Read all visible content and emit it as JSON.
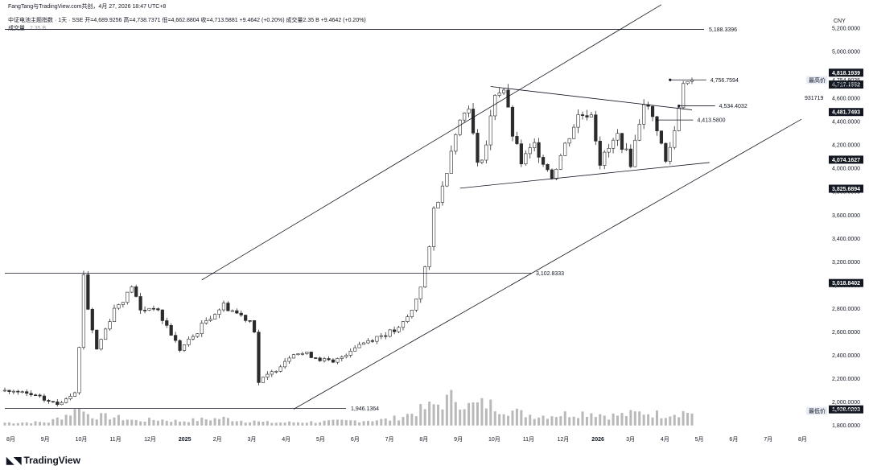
{
  "header": {
    "attribution": "FangTang与TradingView.com共创，4月 27, 2026 18:47 UTC+8",
    "symbol_line": "中证电池主题指数 · 1天 · SSE  开=4,689.9256  高=4,738.7371  低=4,662.8804  收=4,713.5881  +9.4642 (+0.20%)  成交量2.35 B  +9.4642 (+0.20%)",
    "volume_label": "成交量",
    "volume_value": "2.35 B"
  },
  "branding": {
    "logo_text": "TradingView"
  },
  "chart_data": {
    "type": "candlestick",
    "currency": "CNY",
    "y_ticks": [
      1800,
      2000,
      2200,
      2400,
      2600,
      2800,
      3000,
      3200,
      3400,
      3600,
      3800,
      4000,
      4200,
      4400,
      4600,
      5000,
      5200
    ],
    "y_tick_labels": [
      "1,800.0000",
      "2,000.0000",
      "2,200.0000",
      "2,400.0000",
      "2,600.0000",
      "2,800.0000",
      "3,000.0000",
      "3,200.0000",
      "3,400.0000",
      "3,600.0000",
      "3,800.0000",
      "4,000.0000",
      "4,200.0000",
      "4,400.0000",
      "4,600.0000",
      "5,000.0000",
      "5,200.0000"
    ],
    "x_labels": [
      "8月",
      "9月",
      "10月",
      "11月",
      "12月",
      "2025",
      "2月",
      "3月",
      "4月",
      "5月",
      "6月",
      "7月",
      "8月",
      "9月",
      "10月",
      "11月",
      "12月",
      "2026",
      "3月",
      "4月",
      "5月",
      "6月",
      "7月",
      "8月"
    ],
    "x_label_bold": [
      "2025",
      "2026"
    ],
    "ylim": [
      1750,
      5330
    ],
    "price_path": [
      [
        0,
        2100
      ],
      [
        6,
        2060
      ],
      [
        12,
        1980
      ],
      [
        16,
        2100
      ],
      [
        17,
        2460
      ],
      [
        18,
        3102
      ],
      [
        19,
        2800
      ],
      [
        21,
        2450
      ],
      [
        25,
        2800
      ],
      [
        28,
        2920
      ],
      [
        29,
        3000
      ],
      [
        31,
        2780
      ],
      [
        34,
        2820
      ],
      [
        37,
        2650
      ],
      [
        40,
        2450
      ],
      [
        43,
        2560
      ],
      [
        46,
        2700
      ],
      [
        50,
        2830
      ],
      [
        53,
        2760
      ],
      [
        56,
        2700
      ],
      [
        57,
        2620
      ],
      [
        58,
        2170
      ],
      [
        61,
        2250
      ],
      [
        66,
        2430
      ],
      [
        70,
        2400
      ],
      [
        75,
        2330
      ],
      [
        80,
        2480
      ],
      [
        85,
        2560
      ],
      [
        90,
        2620
      ],
      [
        93,
        2780
      ],
      [
        95,
        3000
      ],
      [
        97,
        3300
      ],
      [
        98,
        3650
      ],
      [
        100,
        3830
      ],
      [
        103,
        4330
      ],
      [
        106,
        4550
      ],
      [
        108,
        4020
      ],
      [
        110,
        4200
      ],
      [
        112,
        4650
      ],
      [
        114,
        4680
      ],
      [
        116,
        4290
      ],
      [
        118,
        4050
      ],
      [
        121,
        4200
      ],
      [
        125,
        3930
      ],
      [
        128,
        4200
      ],
      [
        131,
        4450
      ],
      [
        134,
        4480
      ],
      [
        136,
        4050
      ],
      [
        140,
        4280
      ],
      [
        143,
        4050
      ],
      [
        146,
        4580
      ],
      [
        149,
        4350
      ],
      [
        151,
        4050
      ],
      [
        153,
        4320
      ],
      [
        155,
        4756
      ],
      [
        157,
        4714
      ]
    ],
    "volume_scale": [
      1800,
      4500
    ],
    "volume_profile": [
      [
        0,
        12
      ],
      [
        10,
        14
      ],
      [
        16,
        60
      ],
      [
        17,
        95
      ],
      [
        18,
        55
      ],
      [
        20,
        40
      ],
      [
        25,
        35
      ],
      [
        30,
        20
      ],
      [
        35,
        25
      ],
      [
        40,
        18
      ],
      [
        45,
        25
      ],
      [
        50,
        30
      ],
      [
        55,
        18
      ],
      [
        57,
        22
      ],
      [
        58,
        15
      ],
      [
        62,
        12
      ],
      [
        70,
        15
      ],
      [
        80,
        20
      ],
      [
        88,
        25
      ],
      [
        92,
        45
      ],
      [
        96,
        70
      ],
      [
        100,
        95
      ],
      [
        103,
        120
      ],
      [
        106,
        80
      ],
      [
        110,
        90
      ],
      [
        114,
        70
      ],
      [
        118,
        50
      ],
      [
        122,
        40
      ],
      [
        126,
        45
      ],
      [
        130,
        50
      ],
      [
        134,
        55
      ],
      [
        138,
        40
      ],
      [
        142,
        45
      ],
      [
        146,
        55
      ],
      [
        150,
        45
      ],
      [
        154,
        55
      ],
      [
        157,
        55
      ]
    ],
    "horizontal_levels": [
      {
        "value": 5188.3396,
        "label": "5,188.3396"
      },
      {
        "value": 3102.8333,
        "label": "3,102.8333"
      },
      {
        "value": 1946.1364,
        "label": "1,946.1364"
      }
    ],
    "trendlines": [
      {
        "from": [
          45,
          3045
        ],
        "to": [
          150,
          5400
        ]
      },
      {
        "from": [
          66,
          1940
        ],
        "to": [
          182,
          4420
        ]
      },
      {
        "from": [
          111,
          4700
        ],
        "to": [
          157,
          4500
        ]
      },
      {
        "from": [
          104,
          3830
        ],
        "to": [
          161,
          4050
        ]
      }
    ],
    "arrow_annotations": [
      {
        "label": "4,756.7594",
        "x": 152,
        "y": 4756.7594
      },
      {
        "label": "4,534.4032",
        "x": 154,
        "y": 4534.4032
      },
      {
        "label": "4,413.5800",
        "x": 149,
        "y": 4413.58
      }
    ],
    "price_tags": [
      {
        "label": "4,818.1939",
        "value": 4818.1939,
        "style": "dark"
      },
      {
        "label": "最高价",
        "value": 4754.9035,
        "style": "tag"
      },
      {
        "label": "4,754.9035",
        "value": 4754.9035,
        "style": "plain"
      },
      {
        "label": "4,717.1552",
        "value": 4717.1552,
        "style": "dark"
      },
      {
        "label": "4,713.5881",
        "value": 4713.5881,
        "style": "plain"
      },
      {
        "label": "4,481.7493",
        "value": 4481.7493,
        "style": "dark"
      },
      {
        "label": "4,074.1627",
        "value": 4074.1627,
        "style": "dark"
      },
      {
        "label": "3,825.6894",
        "value": 3825.6894,
        "style": "dark"
      },
      {
        "label": "3,018.8402",
        "value": 3018.8402,
        "style": "dark"
      },
      {
        "label": "1,938.0203",
        "value": 1938.0203,
        "style": "dark"
      },
      {
        "label": "最低价",
        "value": 1924.8101,
        "style": "tag"
      },
      {
        "label": "1,924.8101",
        "value": 1924.8101,
        "style": "plain"
      }
    ],
    "edge_label": "931719",
    "colors": {
      "up": "#2b2b2b",
      "down": "#2b2b2b",
      "volume": "#b9b9b9",
      "line": "#131722",
      "tag_bg": "#131722"
    }
  }
}
